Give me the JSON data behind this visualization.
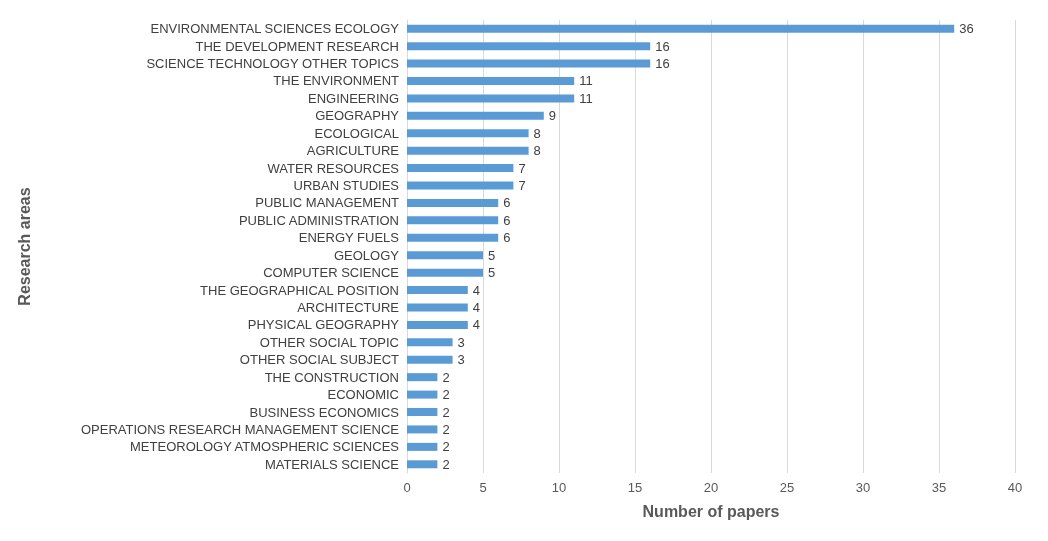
{
  "chart_data": {
    "type": "bar",
    "orientation": "horizontal",
    "xlabel": "Number of papers",
    "ylabel": "Research areas",
    "categories": [
      "ENVIRONMENTAL SCIENCES ECOLOGY",
      "THE DEVELOPMENT RESEARCH",
      "SCIENCE TECHNOLOGY OTHER TOPICS",
      "THE ENVIRONMENT",
      "ENGINEERING",
      "GEOGRAPHY",
      "ECOLOGICAL",
      "AGRICULTURE",
      "WATER RESOURCES",
      "URBAN STUDIES",
      "PUBLIC MANAGEMENT",
      "PUBLIC ADMINISTRATION",
      "ENERGY FUELS",
      "GEOLOGY",
      "COMPUTER SCIENCE",
      "THE GEOGRAPHICAL POSITION",
      "ARCHITECTURE",
      "PHYSICAL GEOGRAPHY",
      "OTHER SOCIAL TOPIC",
      "OTHER SOCIAL SUBJECT",
      "THE CONSTRUCTION",
      "ECONOMIC",
      "BUSINESS ECONOMICS",
      "OPERATIONS RESEARCH MANAGEMENT SCIENCE",
      "METEOROLOGY ATMOSPHERIC SCIENCES",
      "MATERIALS SCIENCE"
    ],
    "values": [
      36,
      16,
      16,
      11,
      11,
      9,
      8,
      8,
      7,
      7,
      6,
      6,
      6,
      5,
      5,
      4,
      4,
      4,
      3,
      3,
      2,
      2,
      2,
      2,
      2,
      2
    ],
    "color": "#5b9bd5",
    "xlim": [
      0,
      40
    ],
    "xticks": [
      0,
      5,
      10,
      15,
      20,
      25,
      30,
      35,
      40
    ],
    "grid": "x",
    "data_labels": true
  }
}
